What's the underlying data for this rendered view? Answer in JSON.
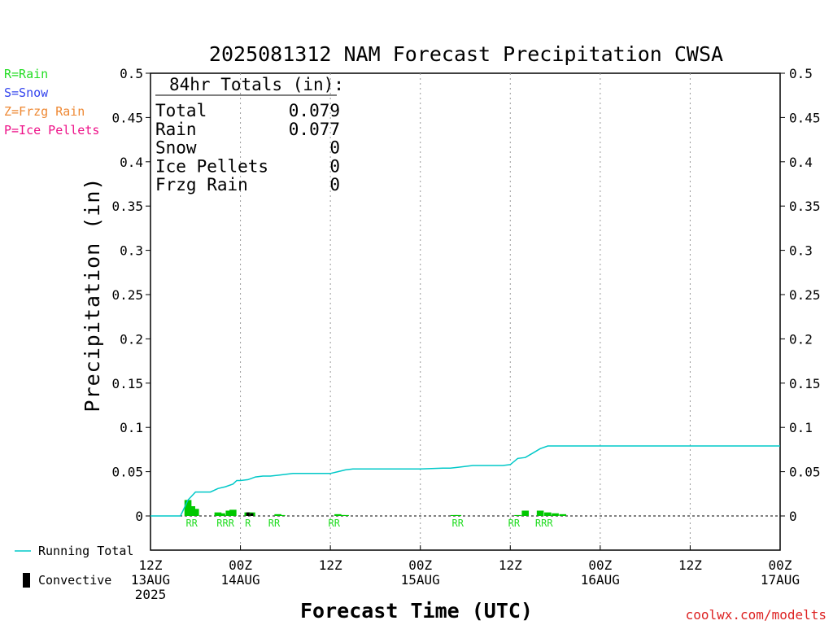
{
  "chart_data": {
    "type": "bar",
    "title": "2025081312 NAM Forecast Precipitation CWSA",
    "ylabel": "Precipitation (in)",
    "xlabel": "Forecast Time (UTC)",
    "ylim": [
      -0.04,
      0.5
    ],
    "y_ticks": [
      0,
      0.05,
      0.1,
      0.15,
      0.2,
      0.25,
      0.3,
      0.35,
      0.4,
      0.45,
      0.5
    ],
    "xlim": [
      0,
      84
    ],
    "x_ticks": [
      {
        "hour": 0,
        "lines": [
          "12Z",
          "13AUG",
          "2025"
        ]
      },
      {
        "hour": 12,
        "lines": [
          "00Z",
          "14AUG"
        ]
      },
      {
        "hour": 24,
        "lines": [
          "12Z"
        ]
      },
      {
        "hour": 36,
        "lines": [
          "00Z",
          "15AUG"
        ]
      },
      {
        "hour": 48,
        "lines": [
          "12Z"
        ]
      },
      {
        "hour": 60,
        "lines": [
          "00Z",
          "16AUG"
        ]
      },
      {
        "hour": 72,
        "lines": [
          "12Z"
        ]
      },
      {
        "hour": 84,
        "lines": [
          "00Z",
          "17AUG"
        ]
      }
    ],
    "grid_hours": [
      12,
      24,
      36,
      48,
      60,
      72
    ],
    "totals": {
      "heading": "84hr Totals (in):",
      "rows": [
        {
          "label": "Total",
          "value": "0.079"
        },
        {
          "label": "Rain",
          "value": "0.077"
        },
        {
          "label": "Snow",
          "value": "0"
        },
        {
          "label": "Ice Pellets",
          "value": "0"
        },
        {
          "label": "Frzg Rain",
          "value": "0"
        }
      ]
    },
    "ptype_legend": [
      {
        "text": "R=Rain",
        "color": "#22dd22"
      },
      {
        "text": "S=Snow",
        "color": "#3344ee"
      },
      {
        "text": "Z=Frzg Rain",
        "color": "#ee8833"
      },
      {
        "text": "P=Ice Pellets",
        "color": "#ee1188"
      }
    ],
    "series": [
      {
        "name": "Running Total",
        "type": "line",
        "color": "#00c8c8",
        "hours": [
          0,
          4,
          5,
          6,
          7,
          8,
          9,
          10,
          11,
          11.5,
          12,
          13,
          14,
          15,
          16,
          17,
          18,
          19,
          20,
          21,
          22,
          23,
          24,
          25,
          26,
          27,
          36,
          39,
          40,
          41,
          42,
          43,
          44,
          45,
          46,
          47,
          48,
          49,
          50,
          51,
          52,
          53,
          54,
          84
        ],
        "values": [
          0,
          0,
          0.018,
          0.027,
          0.027,
          0.027,
          0.031,
          0.033,
          0.036,
          0.04,
          0.04,
          0.041,
          0.044,
          0.045,
          0.045,
          0.046,
          0.047,
          0.048,
          0.048,
          0.048,
          0.048,
          0.048,
          0.048,
          0.05,
          0.052,
          0.053,
          0.053,
          0.054,
          0.054,
          0.055,
          0.056,
          0.057,
          0.057,
          0.057,
          0.057,
          0.057,
          0.058,
          0.065,
          0.066,
          0.071,
          0.076,
          0.079,
          0.079,
          0.079
        ]
      },
      {
        "name": "Convective",
        "type": "bar",
        "color": "#000000",
        "hours": [
          13,
          13.5
        ],
        "values": [
          0.004,
          0.003
        ]
      },
      {
        "name": "Hourly Precipitation",
        "type": "bar",
        "color": "#00c800",
        "hours": [
          5,
          5.5,
          6,
          9,
          9.5,
          10.5,
          11,
          13,
          13.5,
          17,
          17.5,
          25,
          25.5,
          26,
          40.5,
          41,
          49,
          50,
          52,
          53,
          54,
          55
        ],
        "values": [
          0.018,
          0.011,
          0.008,
          0.004,
          0.003,
          0.006,
          0.007,
          0.004,
          0.004,
          0.002,
          0.001,
          0.002,
          0.001,
          0.001,
          0.001,
          0.001,
          0.001,
          0.006,
          0.006,
          0.004,
          0.003,
          0.002
        ]
      }
    ],
    "ptype_labels": [
      {
        "hour": 5.5,
        "text": "RR"
      },
      {
        "hour": 10,
        "text": "RRR"
      },
      {
        "hour": 13,
        "text": "R"
      },
      {
        "hour": 16.5,
        "text": "RR"
      },
      {
        "hour": 24.5,
        "text": "RR"
      },
      {
        "hour": 41,
        "text": "RR"
      },
      {
        "hour": 48.5,
        "text": "RR"
      },
      {
        "hour": 52.5,
        "text": "RRR"
      }
    ],
    "legend": {
      "running_total": "Running Total",
      "convective": "Convective"
    },
    "credit": "coolwx.com/modelts"
  }
}
